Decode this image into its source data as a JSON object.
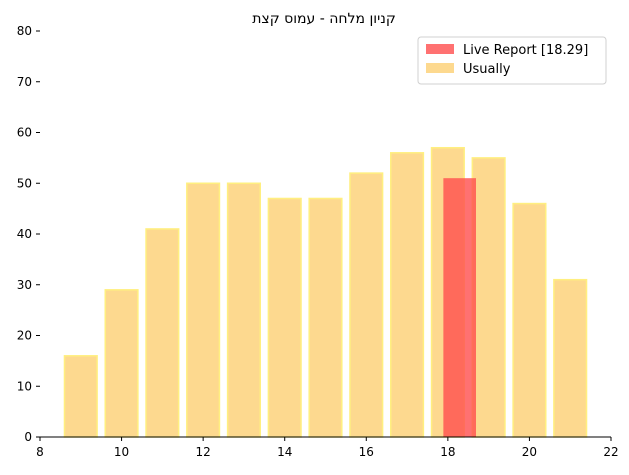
{
  "chart_data": {
    "type": "bar",
    "title": "קניון מלחה - עמוס קצת",
    "xlabel": "",
    "ylabel": "",
    "xlim": [
      8,
      22
    ],
    "ylim": [
      0,
      80
    ],
    "xticks": [
      8,
      10,
      12,
      14,
      16,
      18,
      20,
      22
    ],
    "yticks": [
      0,
      10,
      20,
      30,
      40,
      50,
      60,
      70,
      80
    ],
    "grid": false,
    "legend_position": "top-right",
    "series": [
      {
        "name": "Usually",
        "color": "#fdd98f",
        "edge_color": "#ffef80",
        "bar_width": 0.8,
        "x": [
          9,
          10,
          11,
          12,
          13,
          14,
          15,
          16,
          17,
          18,
          19,
          20,
          21
        ],
        "values": [
          16,
          29,
          41,
          50,
          50,
          47,
          47,
          52,
          56,
          57,
          55,
          46,
          31
        ]
      },
      {
        "name": "Live Report [18.29]",
        "color": "#ff4d4d",
        "alpha": 0.8,
        "bar_width": 0.8,
        "x": [
          18.29
        ],
        "values": [
          51
        ]
      }
    ]
  }
}
